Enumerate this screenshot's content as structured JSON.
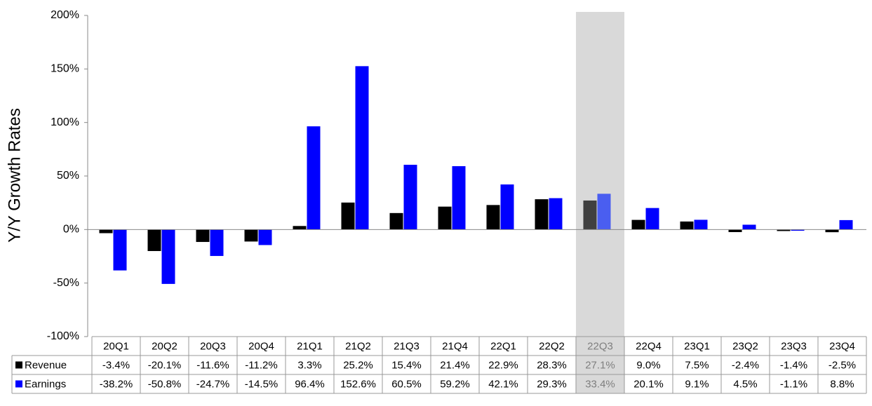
{
  "chart_data": {
    "type": "bar",
    "y_label": "Y/Y Growth Rates",
    "categories": [
      "20Q1",
      "20Q2",
      "20Q3",
      "20Q4",
      "21Q1",
      "21Q2",
      "21Q3",
      "21Q4",
      "22Q1",
      "22Q2",
      "22Q3",
      "22Q4",
      "23Q1",
      "23Q2",
      "23Q3",
      "23Q4"
    ],
    "highlight": "22Q3",
    "series": [
      {
        "name": "Revenue",
        "color": "#000000",
        "highlight_color": "#404040",
        "values": [
          -3.4,
          -20.1,
          -11.6,
          -11.2,
          3.3,
          25.2,
          15.4,
          21.4,
          22.9,
          28.3,
          27.1,
          9.0,
          7.5,
          -2.4,
          -1.4,
          -2.5
        ],
        "value_labels": [
          "-3.4%",
          "-20.1%",
          "-11.6%",
          "-11.2%",
          "3.3%",
          "25.2%",
          "15.4%",
          "21.4%",
          "22.9%",
          "28.3%",
          "27.1%",
          "9.0%",
          "7.5%",
          "-2.4%",
          "-1.4%",
          "-2.5%"
        ]
      },
      {
        "name": "Earnings",
        "color": "#0000ff",
        "highlight_color": "#4a5ef0",
        "values": [
          -38.2,
          -50.8,
          -24.7,
          -14.5,
          96.4,
          152.6,
          60.5,
          59.2,
          42.1,
          29.3,
          33.4,
          20.1,
          9.1,
          4.5,
          -1.1,
          8.8
        ],
        "value_labels": [
          "-38.2%",
          "-50.8%",
          "-24.7%",
          "-14.5%",
          "96.4%",
          "152.6%",
          "60.5%",
          "59.2%",
          "42.1%",
          "29.3%",
          "33.4%",
          "20.1%",
          "9.1%",
          "4.5%",
          "-1.1%",
          "8.8%"
        ]
      }
    ],
    "ylim": [
      -100,
      200
    ],
    "yticks": [
      {
        "value": -100,
        "label": "-100%"
      },
      {
        "value": -50,
        "label": "-50%"
      },
      {
        "value": 0,
        "label": "0%"
      },
      {
        "value": 50,
        "label": "50%"
      },
      {
        "value": 100,
        "label": "100%"
      },
      {
        "value": 150,
        "label": "150%"
      },
      {
        "value": 200,
        "label": "200%"
      }
    ],
    "grid": false
  }
}
